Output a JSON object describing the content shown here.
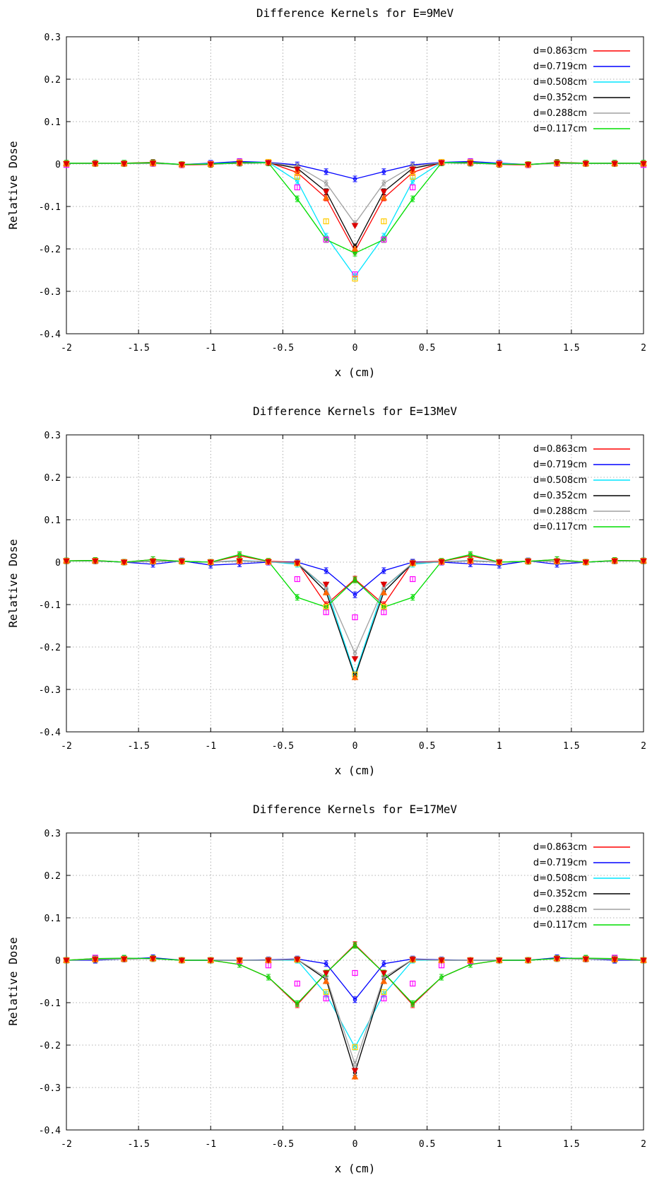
{
  "chart_data": [
    {
      "type": "line",
      "title": "Difference Kernels for E=9MeV",
      "xlabel": "x (cm)",
      "ylabel": "Relative Dose",
      "xlim": [
        -2,
        2
      ],
      "ylim": [
        -0.4,
        0.3
      ],
      "xticks": [
        "-2",
        "-1.5",
        "-1",
        "-0.5",
        "0",
        "0.5",
        "1",
        "1.5",
        "2"
      ],
      "yticks": [
        "-0.4",
        "-0.3",
        "-0.2",
        "-0.1",
        "0",
        "0.1",
        "0.2",
        "0.3"
      ],
      "grid": true,
      "legend_position": "top-right",
      "x": [
        -2,
        -1.8,
        -1.6,
        -1.4,
        -1.2,
        -1,
        -0.8,
        -0.6,
        -0.4,
        -0.2,
        0,
        0.2,
        0.4,
        0.6,
        0.8,
        1,
        1.2,
        1.4,
        1.6,
        1.8,
        2
      ],
      "series": [
        {
          "name": "d=0.863cm",
          "color": "#ff0000",
          "values": [
            0.002,
            0.002,
            0.002,
            0.004,
            -0.002,
            -0.001,
            0.004,
            0.004,
            -0.02,
            -0.08,
            -0.205,
            -0.08,
            -0.02,
            0.004,
            0.004,
            -0.001,
            -0.002,
            0.004,
            0.002,
            0.002,
            0.002
          ]
        },
        {
          "name": "d=0.719cm",
          "color": "#0000ff",
          "values": [
            0.001,
            0.002,
            0.001,
            0.003,
            -0.001,
            0.002,
            0.006,
            0.004,
            -0.002,
            -0.018,
            -0.035,
            -0.018,
            -0.002,
            0.004,
            0.006,
            0.002,
            -0.001,
            0.003,
            0.001,
            0.002,
            0.001
          ]
        },
        {
          "name": "d=0.508cm",
          "color": "#00e5ff",
          "values": [
            0.002,
            0.001,
            0.002,
            0.002,
            -0.001,
            0.001,
            0.003,
            0.004,
            -0.04,
            -0.17,
            -0.265,
            -0.17,
            -0.04,
            0.004,
            0.003,
            0.001,
            -0.001,
            0.002,
            0.002,
            0.001,
            0.002
          ]
        },
        {
          "name": "d=0.352cm",
          "color": "#000000",
          "values": [
            0.001,
            0.001,
            0.001,
            0.002,
            -0.001,
            0.0,
            0.002,
            0.003,
            -0.01,
            -0.065,
            -0.195,
            -0.065,
            -0.01,
            0.003,
            0.002,
            0.0,
            -0.001,
            0.002,
            0.001,
            0.001,
            0.001
          ]
        },
        {
          "name": "d=0.288cm",
          "color": "#a0a0a0",
          "values": [
            0.001,
            0.001,
            0.001,
            0.001,
            -0.001,
            0.0,
            0.002,
            0.003,
            -0.005,
            -0.045,
            -0.14,
            -0.045,
            -0.005,
            0.003,
            0.002,
            0.0,
            -0.001,
            0.001,
            0.001,
            0.001,
            0.001
          ]
        },
        {
          "name": "d=0.117cm",
          "color": "#00dd00",
          "values": [
            0.002,
            0.002,
            0.002,
            0.003,
            -0.001,
            0.0,
            0.003,
            0.003,
            -0.082,
            -0.178,
            -0.21,
            -0.178,
            -0.082,
            0.003,
            0.003,
            0.0,
            -0.001,
            0.003,
            0.002,
            0.002,
            0.002
          ]
        }
      ],
      "markers": [
        {
          "color": "#ff00ff",
          "shape": "square",
          "values": [
            -0.002,
            0.001,
            0.001,
            0.001,
            -0.002,
            0.001,
            0.006,
            0.004,
            -0.055,
            -0.178,
            -0.26,
            -0.178,
            -0.055,
            0.004,
            0.006,
            0.001,
            -0.002,
            0.001,
            0.001,
            0.001,
            -0.002
          ]
        },
        {
          "color": "#ffcc00",
          "shape": "square",
          "values": [
            0.001,
            0.001,
            0.001,
            0.002,
            -0.001,
            0.0,
            0.004,
            0.005,
            -0.03,
            -0.135,
            -0.27,
            -0.135,
            -0.03,
            0.005,
            0.004,
            0.0,
            -0.001,
            0.002,
            0.001,
            0.001,
            0.001
          ]
        },
        {
          "color": "#ff6600",
          "shape": "triangle",
          "values": [
            0.001,
            0.001,
            0.001,
            0.002,
            -0.001,
            0.0,
            0.002,
            0.003,
            -0.015,
            -0.08,
            -0.2,
            -0.08,
            -0.015,
            0.003,
            0.002,
            0.0,
            -0.001,
            0.002,
            0.001,
            0.001,
            0.001
          ]
        },
        {
          "color": "#dd0000",
          "shape": "triangle-down",
          "values": [
            0.001,
            0.001,
            0.001,
            0.002,
            -0.001,
            0.0,
            0.002,
            0.003,
            -0.012,
            -0.065,
            -0.145,
            -0.065,
            -0.012,
            0.003,
            0.002,
            0.0,
            -0.001,
            0.002,
            0.001,
            0.001,
            0.001
          ]
        }
      ]
    },
    {
      "type": "line",
      "title": "Difference Kernels for E=13MeV",
      "xlabel": "x (cm)",
      "ylabel": "Relative Dose",
      "xlim": [
        -2,
        2
      ],
      "ylim": [
        -0.4,
        0.3
      ],
      "xticks": [
        "-2",
        "-1.5",
        "-1",
        "-0.5",
        "0",
        "0.5",
        "1",
        "1.5",
        "2"
      ],
      "yticks": [
        "-0.4",
        "-0.3",
        "-0.2",
        "-0.1",
        "0",
        "0.1",
        "0.2",
        "0.3"
      ],
      "grid": true,
      "legend_position": "top-right",
      "x": [
        -2,
        -1.8,
        -1.6,
        -1.4,
        -1.2,
        -1,
        -0.8,
        -0.6,
        -0.4,
        -0.2,
        0,
        0.2,
        0.4,
        0.6,
        0.8,
        1,
        1.2,
        1.4,
        1.6,
        1.8,
        2
      ],
      "series": [
        {
          "name": "d=0.863cm",
          "color": "#ff0000",
          "values": [
            0.003,
            0.004,
            0.0,
            0.006,
            0.002,
            0.0,
            0.015,
            0.002,
            0.0,
            -0.1,
            -0.04,
            -0.1,
            0.0,
            0.002,
            0.015,
            0.0,
            0.002,
            0.006,
            0.0,
            0.004,
            0.003
          ]
        },
        {
          "name": "d=0.719cm",
          "color": "#0000ff",
          "values": [
            0.003,
            0.003,
            0.0,
            -0.005,
            0.003,
            -0.007,
            -0.004,
            0.0,
            0.0,
            -0.02,
            -0.077,
            -0.02,
            0.0,
            0.0,
            -0.004,
            -0.007,
            0.003,
            -0.005,
            0.0,
            0.003,
            0.003
          ]
        },
        {
          "name": "d=0.508cm",
          "color": "#00e5ff",
          "values": [
            0.003,
            0.003,
            0.0,
            0.002,
            0.002,
            0.0,
            0.004,
            0.001,
            -0.005,
            -0.06,
            -0.265,
            -0.06,
            -0.005,
            0.001,
            0.004,
            0.0,
            0.002,
            0.002,
            0.0,
            0.003,
            0.003
          ]
        },
        {
          "name": "d=0.352cm",
          "color": "#000000",
          "values": [
            0.003,
            0.003,
            0.0,
            0.002,
            0.002,
            0.0,
            0.003,
            0.001,
            -0.002,
            -0.07,
            -0.27,
            -0.07,
            -0.002,
            0.001,
            0.003,
            0.0,
            0.002,
            0.002,
            0.0,
            0.003,
            0.003
          ]
        },
        {
          "name": "d=0.288cm",
          "color": "#a0a0a0",
          "values": [
            0.003,
            0.003,
            0.0,
            0.002,
            0.002,
            0.0,
            0.003,
            0.001,
            -0.002,
            -0.06,
            -0.215,
            -0.06,
            -0.002,
            0.001,
            0.003,
            0.0,
            0.002,
            0.002,
            0.0,
            0.003,
            0.003
          ]
        },
        {
          "name": "d=0.117cm",
          "color": "#00dd00",
          "values": [
            0.003,
            0.004,
            0.0,
            0.006,
            0.002,
            0.0,
            0.018,
            0.002,
            -0.083,
            -0.106,
            -0.042,
            -0.106,
            -0.083,
            0.002,
            0.018,
            0.0,
            0.002,
            0.006,
            0.0,
            0.004,
            0.003
          ]
        }
      ],
      "markers": [
        {
          "color": "#ff00ff",
          "shape": "square",
          "values": [
            0.003,
            0.003,
            0.0,
            0.002,
            0.002,
            0.0,
            0.002,
            0.0,
            -0.04,
            -0.118,
            -0.13,
            -0.118,
            -0.04,
            0.0,
            0.002,
            0.0,
            0.002,
            0.002,
            0.0,
            0.003,
            0.003
          ]
        },
        {
          "color": "#ffcc00",
          "shape": "square",
          "values": [
            0.003,
            0.003,
            0.0,
            0.002,
            0.002,
            0.0,
            0.003,
            0.001,
            -0.003,
            -0.105,
            -0.265,
            -0.105,
            -0.003,
            0.001,
            0.003,
            0.0,
            0.002,
            0.002,
            0.0,
            0.003,
            0.003
          ]
        },
        {
          "color": "#ff6600",
          "shape": "triangle",
          "values": [
            0.003,
            0.003,
            0.0,
            0.002,
            0.002,
            0.0,
            0.003,
            0.001,
            -0.002,
            -0.072,
            -0.272,
            -0.072,
            -0.002,
            0.001,
            0.003,
            0.0,
            0.002,
            0.002,
            0.0,
            0.003,
            0.003
          ]
        },
        {
          "color": "#dd0000",
          "shape": "triangle-down",
          "values": [
            0.003,
            0.003,
            0.0,
            0.002,
            0.002,
            0.0,
            0.003,
            0.001,
            -0.002,
            -0.052,
            -0.228,
            -0.052,
            -0.002,
            0.001,
            0.003,
            0.0,
            0.002,
            0.002,
            0.0,
            0.003,
            0.003
          ]
        }
      ]
    },
    {
      "type": "line",
      "title": "Difference Kernels for E=17MeV",
      "xlabel": "x (cm)",
      "ylabel": "Relative Dose",
      "xlim": [
        -2,
        2
      ],
      "ylim": [
        -0.4,
        0.3
      ],
      "xticks": [
        "-2",
        "-1.5",
        "-1",
        "-0.5",
        "0",
        "0.5",
        "1",
        "1.5",
        "2"
      ],
      "yticks": [
        "-0.4",
        "-0.3",
        "-0.2",
        "-0.1",
        "0",
        "0.1",
        "0.2",
        "0.3"
      ],
      "grid": true,
      "legend_position": "top-right",
      "x": [
        -2,
        -1.8,
        -1.6,
        -1.4,
        -1.2,
        -1,
        -0.8,
        -0.6,
        -0.4,
        -0.2,
        0,
        0.2,
        0.4,
        0.6,
        0.8,
        1,
        1.2,
        1.4,
        1.6,
        1.8,
        2
      ],
      "series": [
        {
          "name": "d=0.863cm",
          "color": "#ff0000",
          "values": [
            0.0,
            0.004,
            0.003,
            0.004,
            0.0,
            0.0,
            -0.01,
            -0.04,
            -0.105,
            -0.03,
            0.037,
            -0.03,
            -0.105,
            -0.04,
            -0.01,
            0.0,
            0.0,
            0.004,
            0.003,
            0.004,
            0.0
          ]
        },
        {
          "name": "d=0.719cm",
          "color": "#0000ff",
          "values": [
            0.0,
            0.0,
            0.003,
            0.006,
            0.0,
            0.0,
            0.0,
            0.001,
            0.003,
            -0.008,
            -0.093,
            -0.008,
            0.003,
            0.001,
            0.0,
            0.0,
            0.0,
            0.006,
            0.003,
            0.0,
            0.0
          ]
        },
        {
          "name": "d=0.508cm",
          "color": "#00e5ff",
          "values": [
            0.0,
            0.002,
            0.003,
            0.004,
            0.0,
            0.0,
            0.0,
            0.0,
            0.0,
            -0.08,
            -0.205,
            -0.08,
            0.0,
            0.0,
            0.0,
            0.0,
            0.0,
            0.004,
            0.003,
            0.002,
            0.0
          ]
        },
        {
          "name": "d=0.352cm",
          "color": "#000000",
          "values": [
            0.0,
            0.002,
            0.003,
            0.004,
            0.0,
            0.0,
            0.0,
            0.0,
            0.002,
            -0.045,
            -0.265,
            -0.045,
            0.002,
            0.0,
            0.0,
            0.0,
            0.0,
            0.004,
            0.003,
            0.002,
            0.0
          ]
        },
        {
          "name": "d=0.288cm",
          "color": "#a0a0a0",
          "values": [
            0.0,
            0.002,
            0.003,
            0.004,
            0.0,
            0.0,
            0.0,
            0.0,
            0.002,
            -0.04,
            -0.245,
            -0.04,
            0.002,
            0.0,
            0.0,
            0.0,
            0.0,
            0.004,
            0.003,
            0.002,
            0.0
          ]
        },
        {
          "name": "d=0.117cm",
          "color": "#00dd00",
          "values": [
            0.0,
            0.004,
            0.005,
            0.004,
            0.0,
            0.0,
            -0.01,
            -0.04,
            -0.102,
            -0.03,
            0.035,
            -0.03,
            -0.102,
            -0.04,
            -0.01,
            0.0,
            0.0,
            0.004,
            0.005,
            0.004,
            0.0
          ]
        }
      ],
      "markers": [
        {
          "color": "#ff00ff",
          "shape": "square",
          "values": [
            0.0,
            0.006,
            0.003,
            0.004,
            0.0,
            0.0,
            -0.002,
            -0.012,
            -0.055,
            -0.09,
            -0.03,
            -0.09,
            -0.055,
            -0.012,
            -0.002,
            0.0,
            0.0,
            0.004,
            0.003,
            0.006,
            0.0
          ]
        },
        {
          "color": "#ffcc00",
          "shape": "square",
          "values": [
            0.0,
            0.002,
            0.003,
            0.004,
            0.0,
            0.0,
            0.0,
            0.0,
            0.001,
            -0.075,
            -0.205,
            -0.075,
            0.001,
            0.0,
            0.0,
            0.0,
            0.0,
            0.004,
            0.003,
            0.002,
            0.0
          ]
        },
        {
          "color": "#ff6600",
          "shape": "triangle",
          "values": [
            0.0,
            0.002,
            0.003,
            0.004,
            0.0,
            0.0,
            0.0,
            0.0,
            0.002,
            -0.05,
            -0.275,
            -0.05,
            0.002,
            0.0,
            0.0,
            0.0,
            0.0,
            0.004,
            0.003,
            0.002,
            0.0
          ]
        },
        {
          "color": "#dd0000",
          "shape": "triangle-down",
          "values": [
            0.0,
            0.002,
            0.003,
            0.004,
            0.0,
            0.0,
            0.0,
            0.0,
            0.002,
            -0.03,
            -0.26,
            -0.03,
            0.002,
            0.0,
            0.0,
            0.0,
            0.0,
            0.004,
            0.003,
            0.002,
            0.0
          ]
        }
      ]
    }
  ]
}
